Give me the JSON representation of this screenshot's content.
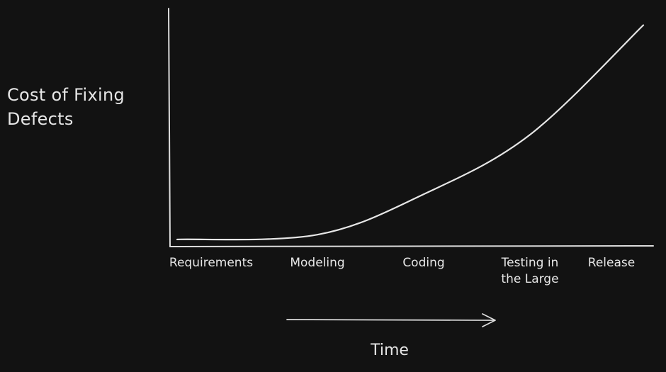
{
  "chart_data": {
    "type": "line",
    "title": "",
    "ylabel_lines": [
      "Cost of Fixing",
      "Defects"
    ],
    "xlabel": "Time",
    "categories": [
      [
        "Requirements"
      ],
      [
        "Modeling"
      ],
      [
        "Coding"
      ],
      [
        "Testing in",
        "the Large"
      ],
      [
        "Release"
      ]
    ],
    "x": [
      0,
      1,
      2,
      3,
      4
    ],
    "series": [
      {
        "values": [
          0.03,
          0.05,
          0.22,
          0.47,
          0.93
        ]
      }
    ],
    "ylim": [
      0,
      1
    ],
    "y_ticks_shown": false,
    "grid": false,
    "legend": "none",
    "colors": {
      "background": "#121212",
      "ink": "#e6e6e6"
    }
  }
}
